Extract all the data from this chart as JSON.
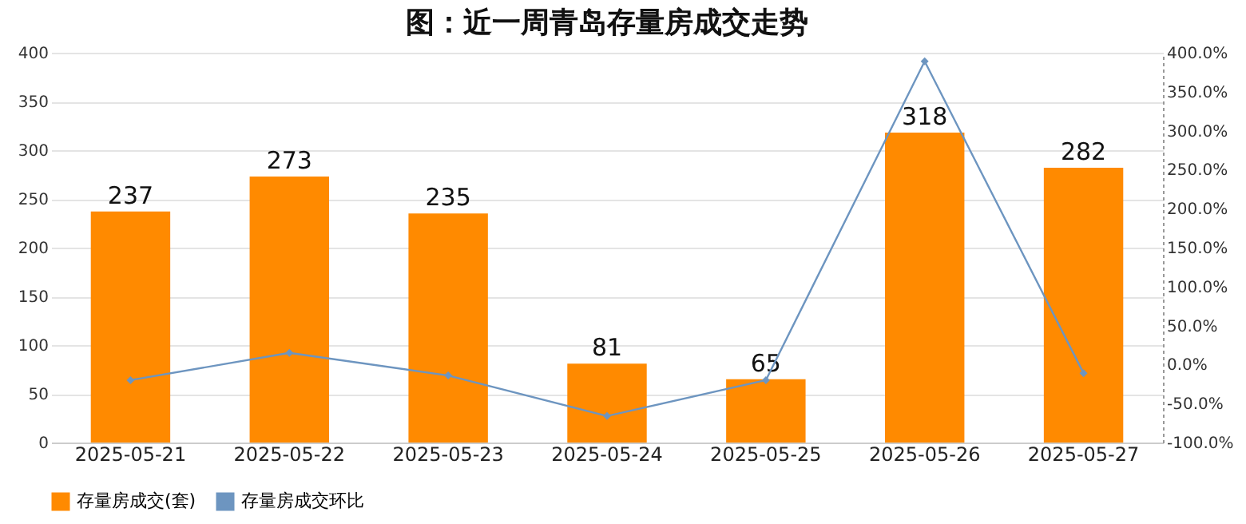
{
  "chart_data": {
    "type": "bar",
    "title": "图：近一周青岛存量房成交走势",
    "categories": [
      "2025-05-21",
      "2025-05-22",
      "2025-05-23",
      "2025-05-24",
      "2025-05-25",
      "2025-05-26",
      "2025-05-27"
    ],
    "series": [
      {
        "name": "存量房成交(套)",
        "color": "#ff8a00",
        "values": [
          237,
          273,
          235,
          81,
          65,
          318,
          282
        ],
        "value_labels": [
          "237",
          "273",
          "235",
          "81",
          "65",
          "318",
          "282"
        ]
      },
      {
        "name": "存量房成交环比",
        "type": "line",
        "axis": "y2",
        "color": "#6d95c0",
        "marker": "diamond",
        "values": [
          -20,
          15,
          -14,
          -66,
          -20,
          389,
          -11
        ]
      }
    ],
    "ylim": [
      0,
      400
    ],
    "yticks": [
      0,
      50,
      100,
      150,
      200,
      250,
      300,
      350,
      400
    ],
    "y2lim": [
      -100,
      400
    ],
    "y2ticks": [
      {
        "value": -100,
        "label": "-100.0%"
      },
      {
        "value": -50,
        "label": "-50.0%"
      },
      {
        "value": 0,
        "label": "0.0%"
      },
      {
        "value": 50,
        "label": "50.0%"
      },
      {
        "value": 100,
        "label": "100.0%"
      },
      {
        "value": 150,
        "label": "150.0%"
      },
      {
        "value": 200,
        "label": "200.0%"
      },
      {
        "value": 250,
        "label": "250.0%"
      },
      {
        "value": 300,
        "label": "300.0%"
      },
      {
        "value": 350,
        "label": "350.0%"
      },
      {
        "value": 400,
        "label": "400.0%"
      }
    ],
    "grid": "y",
    "legend": "bottom"
  }
}
